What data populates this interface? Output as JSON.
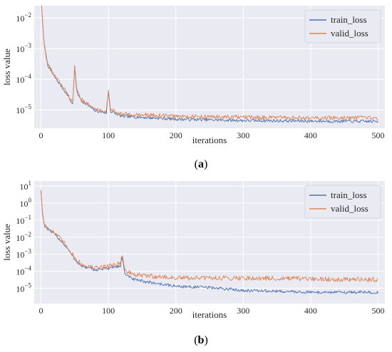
{
  "colors": {
    "train_loss": "#4c72b0",
    "valid_loss": "#dd8452",
    "plot_bg": "#eaeaf2",
    "grid": "#ffffff"
  },
  "chart_data": [
    {
      "type": "line",
      "panel_label": "a",
      "xlabel": "iterations",
      "ylabel": "loss value",
      "yscale": "log",
      "xlim": [
        -10,
        510
      ],
      "ylim_log10": [
        -5.6,
        -1.6
      ],
      "x_ticks": [
        "0",
        "100",
        "200",
        "300",
        "400",
        "500"
      ],
      "y_ticks": [
        {
          "base": "10",
          "exp": "−2"
        },
        {
          "base": "10",
          "exp": "−3"
        },
        {
          "base": "10",
          "exp": "−4"
        },
        {
          "base": "10",
          "exp": "−5"
        }
      ],
      "grid": true,
      "legend": "top-right",
      "series": [
        {
          "name": "train_loss",
          "keypoints": [
            [
              0,
              0.045
            ],
            [
              2,
              0.01
            ],
            [
              5,
              0.0012
            ],
            [
              10,
              0.0003
            ],
            [
              20,
              0.00012
            ],
            [
              30,
              6e-05
            ],
            [
              40,
              3e-05
            ],
            [
              47,
              1.5e-05
            ],
            [
              50,
              0.00025
            ],
            [
              53,
              4e-05
            ],
            [
              60,
              2e-05
            ],
            [
              80,
              9.5e-06
            ],
            [
              97,
              8e-06
            ],
            [
              100,
              4e-05
            ],
            [
              103,
              9e-06
            ],
            [
              120,
              6.2e-06
            ],
            [
              200,
              5e-06
            ],
            [
              300,
              4.5e-06
            ],
            [
              400,
              4.3e-06
            ],
            [
              500,
              4.2e-06
            ]
          ]
        },
        {
          "name": "valid_loss",
          "keypoints": [
            [
              0,
              0.048
            ],
            [
              2,
              0.011
            ],
            [
              5,
              0.0013
            ],
            [
              10,
              0.00032
            ],
            [
              20,
              0.00013
            ],
            [
              30,
              6.5e-05
            ],
            [
              40,
              3.2e-05
            ],
            [
              47,
              1.6e-05
            ],
            [
              50,
              0.0003
            ],
            [
              53,
              4.5e-05
            ],
            [
              60,
              2.2e-05
            ],
            [
              80,
              1.05e-05
            ],
            [
              97,
              9e-06
            ],
            [
              100,
              4.5e-05
            ],
            [
              103,
              1e-05
            ],
            [
              120,
              7.2e-06
            ],
            [
              200,
              6.2e-06
            ],
            [
              300,
              5.7e-06
            ],
            [
              400,
              5.4e-06
            ],
            [
              500,
              5.4e-06
            ]
          ]
        }
      ]
    },
    {
      "type": "line",
      "panel_label": "b",
      "xlabel": "iterations",
      "ylabel": "loss value",
      "yscale": "log",
      "xlim": [
        -10,
        510
      ],
      "ylim_log10": [
        -5.9,
        1.3
      ],
      "x_ticks": [
        "0",
        "100",
        "200",
        "300",
        "400",
        "500"
      ],
      "y_ticks": [
        {
          "base": "10",
          "exp": "1"
        },
        {
          "base": "10",
          "exp": "0"
        },
        {
          "base": "10",
          "exp": "−1"
        },
        {
          "base": "10",
          "exp": "−2"
        },
        {
          "base": "10",
          "exp": "−3"
        },
        {
          "base": "10",
          "exp": "−4"
        },
        {
          "base": "10",
          "exp": "−5"
        }
      ],
      "grid": true,
      "legend": "top-right",
      "series": [
        {
          "name": "train_loss",
          "keypoints": [
            [
              0,
              5.0
            ],
            [
              2,
              0.3
            ],
            [
              5,
              0.05
            ],
            [
              10,
              0.03
            ],
            [
              20,
              0.015
            ],
            [
              30,
              0.006
            ],
            [
              40,
              0.002
            ],
            [
              50,
              0.0005
            ],
            [
              60,
              0.0002
            ],
            [
              80,
              0.00012
            ],
            [
              100,
              0.00015
            ],
            [
              118,
              0.0002
            ],
            [
              120,
              0.0008
            ],
            [
              125,
              6e-05
            ],
            [
              140,
              3e-05
            ],
            [
              200,
              1.3e-05
            ],
            [
              250,
              1.1e-05
            ],
            [
              300,
              7.5e-06
            ],
            [
              400,
              5.8e-06
            ],
            [
              500,
              5.8e-06
            ]
          ]
        },
        {
          "name": "valid_loss",
          "keypoints": [
            [
              0,
              6.0
            ],
            [
              2,
              0.35
            ],
            [
              5,
              0.06
            ],
            [
              10,
              0.035
            ],
            [
              20,
              0.018
            ],
            [
              30,
              0.007
            ],
            [
              40,
              0.0025
            ],
            [
              50,
              0.0006
            ],
            [
              60,
              0.00025
            ],
            [
              80,
              0.00015
            ],
            [
              100,
              0.0002
            ],
            [
              118,
              0.0003
            ],
            [
              120,
              0.001
            ],
            [
              125,
              0.0001
            ],
            [
              140,
              6e-05
            ],
            [
              200,
              4e-05
            ],
            [
              300,
              4e-05
            ],
            [
              400,
              3.5e-05
            ],
            [
              500,
              3.2e-05
            ]
          ]
        }
      ]
    }
  ]
}
